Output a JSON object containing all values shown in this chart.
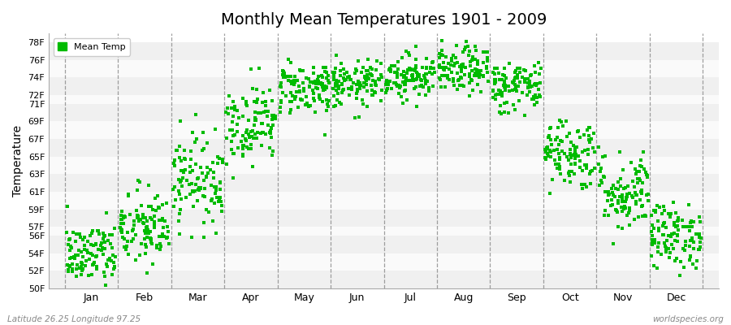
{
  "title": "Monthly Mean Temperatures 1901 - 2009",
  "ylabel": "Temperature",
  "ytick_labels": [
    "50F",
    "52F",
    "54F",
    "56F",
    "57F",
    "59F",
    "61F",
    "63F",
    "65F",
    "67F",
    "69F",
    "71F",
    "72F",
    "74F",
    "76F",
    "78F"
  ],
  "ytick_values": [
    50,
    52,
    54,
    56,
    57,
    59,
    61,
    63,
    65,
    67,
    69,
    71,
    72,
    74,
    76,
    78
  ],
  "ylim": [
    50,
    79
  ],
  "months": [
    "Jan",
    "Feb",
    "Mar",
    "Apr",
    "May",
    "Jun",
    "Jul",
    "Aug",
    "Sep",
    "Oct",
    "Nov",
    "Dec"
  ],
  "month_centers": [
    0.5,
    1.5,
    2.5,
    3.5,
    4.5,
    5.5,
    6.5,
    7.5,
    8.5,
    9.5,
    10.5,
    11.5
  ],
  "dot_color": "#00BB00",
  "dot_size": 5,
  "background_color": "#ffffff",
  "band_colors": [
    "#f0f0f0",
    "#fafafa",
    "#f0f0f0",
    "#fafafa",
    "#f0f0f0",
    "#fafafa",
    "#f0f0f0",
    "#fafafa",
    "#f0f0f0",
    "#fafafa",
    "#f0f0f0",
    "#fafafa",
    "#f0f0f0",
    "#fafafa",
    "#f0f0f0"
  ],
  "legend_label": "Mean Temp",
  "footer_left": "Latitude 26.25 Longitude 97.25",
  "footer_right": "worldspecies.org",
  "mean_temps": [
    53.8,
    56.8,
    62.5,
    68.8,
    72.8,
    73.2,
    74.2,
    74.8,
    73.0,
    65.5,
    61.0,
    56.0
  ],
  "std_temps": [
    1.8,
    2.2,
    2.5,
    2.2,
    1.5,
    1.3,
    1.3,
    1.3,
    1.5,
    2.0,
    2.2,
    1.8
  ],
  "trend": [
    0.015,
    0.015,
    0.015,
    0.01,
    0.008,
    0.006,
    0.006,
    0.006,
    0.008,
    0.01,
    0.012,
    0.015
  ],
  "n_years": 109,
  "seed": 42,
  "xlim_left": -0.3,
  "xlim_right": 12.3
}
